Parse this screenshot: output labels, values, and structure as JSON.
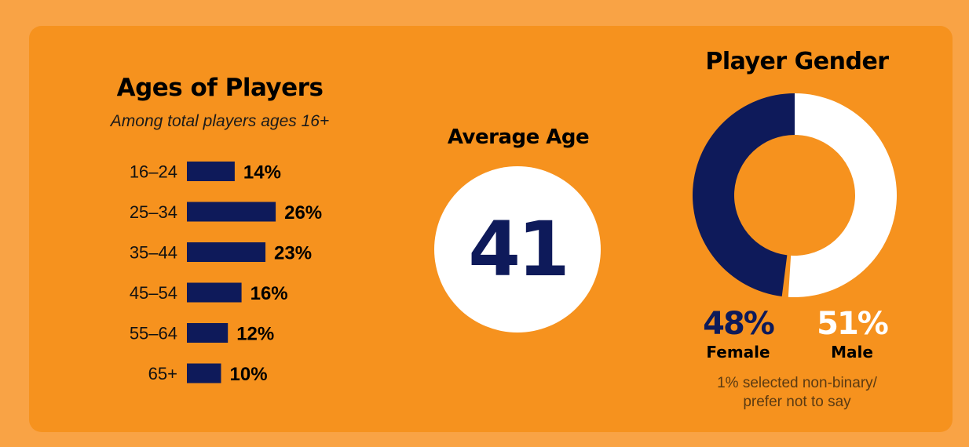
{
  "chart_data": [
    {
      "type": "bar",
      "orientation": "horizontal",
      "title": "Ages of Players",
      "subtitle": "Among total players ages 16+",
      "categories": [
        "16–24",
        "25–34",
        "35–44",
        "45–54",
        "55–64",
        "65+"
      ],
      "values": [
        14,
        26,
        23,
        16,
        12,
        10
      ],
      "value_labels": [
        "14%",
        "26%",
        "23%",
        "16%",
        "12%",
        "10%"
      ],
      "unit": "%",
      "grid": false,
      "bar_color": "#0E1A5A"
    },
    {
      "type": "stat",
      "title": "Average Age",
      "value": "41",
      "value_color": "#0E1A5A",
      "circle_color": "#FFFFFF"
    },
    {
      "type": "pie",
      "donut": true,
      "title": "Player Gender",
      "slices": [
        {
          "label": "Female",
          "value": 48,
          "value_label": "48%",
          "color": "#0E1A5A"
        },
        {
          "label": "Male",
          "value": 51,
          "value_label": "51%",
          "color": "#FFFFFF"
        }
      ],
      "note": [
        "1% selected non-binary/",
        "prefer not to say"
      ]
    }
  ],
  "colors": {
    "page_background": "#F9A345",
    "card_background": "#F6921E",
    "navy": "#0E1A5A",
    "white": "#FFFFFF"
  }
}
